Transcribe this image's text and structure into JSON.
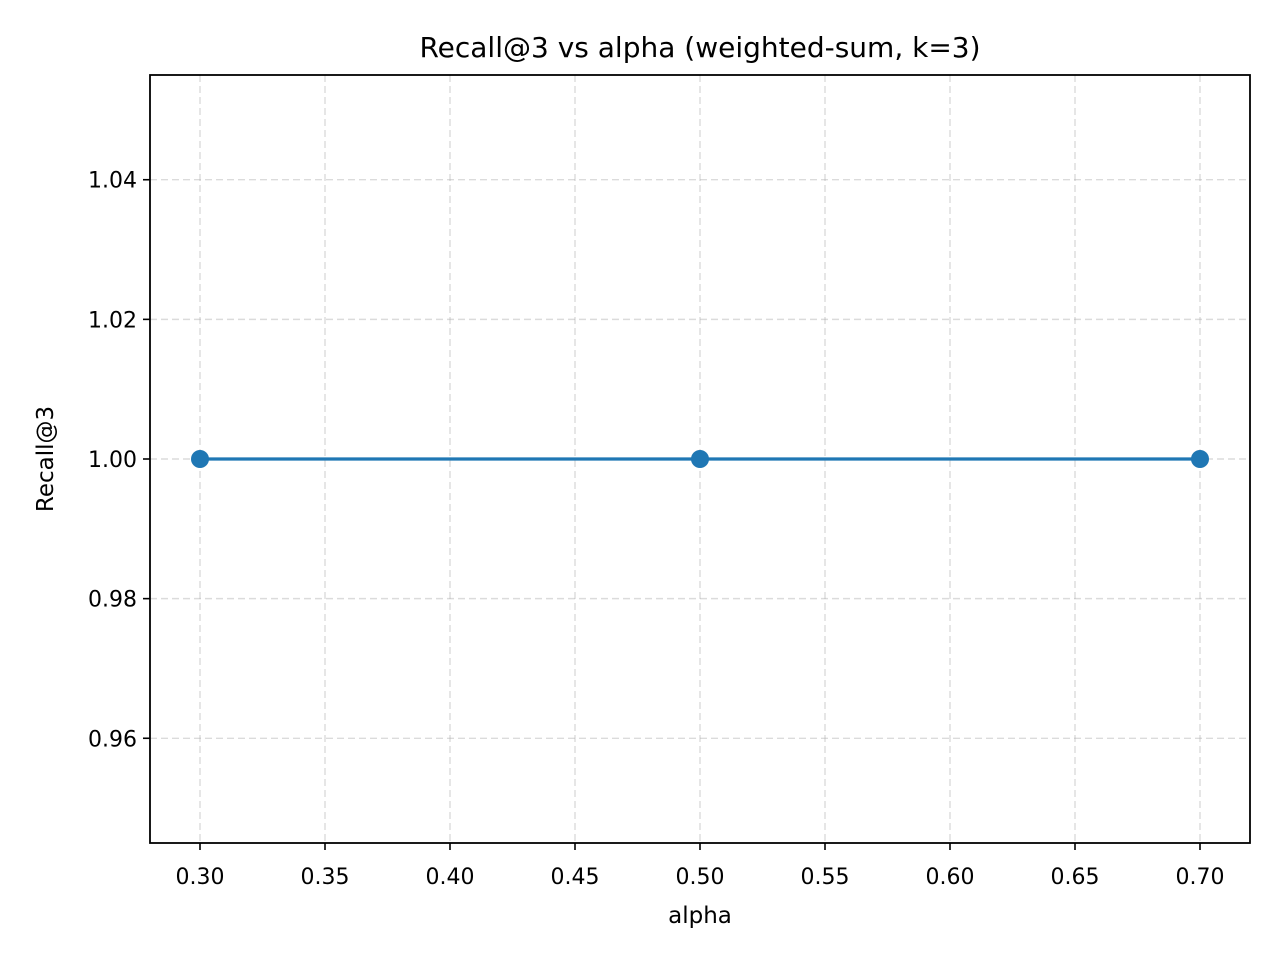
{
  "chart_data": {
    "type": "line",
    "title": "Recall@3 vs alpha (weighted-sum, k=3)",
    "xlabel": "alpha",
    "ylabel": "Recall@3",
    "xlim": [
      0.28,
      0.72
    ],
    "ylim": [
      0.945,
      1.055
    ],
    "xticks": [
      0.3,
      0.35,
      0.4,
      0.45,
      0.5,
      0.55,
      0.6,
      0.65,
      0.7
    ],
    "xtick_labels": [
      "0.30",
      "0.35",
      "0.40",
      "0.45",
      "0.50",
      "0.55",
      "0.60",
      "0.65",
      "0.70"
    ],
    "yticks": [
      0.96,
      0.98,
      1.0,
      1.02,
      1.04
    ],
    "ytick_labels": [
      "0.96",
      "0.98",
      "1.00",
      "1.02",
      "1.04"
    ],
    "grid": true,
    "series": [
      {
        "x": [
          0.3,
          0.5,
          0.7
        ],
        "y": [
          1.0,
          1.0,
          1.0
        ],
        "color": "#1f77b4",
        "marker": "circle"
      }
    ]
  }
}
